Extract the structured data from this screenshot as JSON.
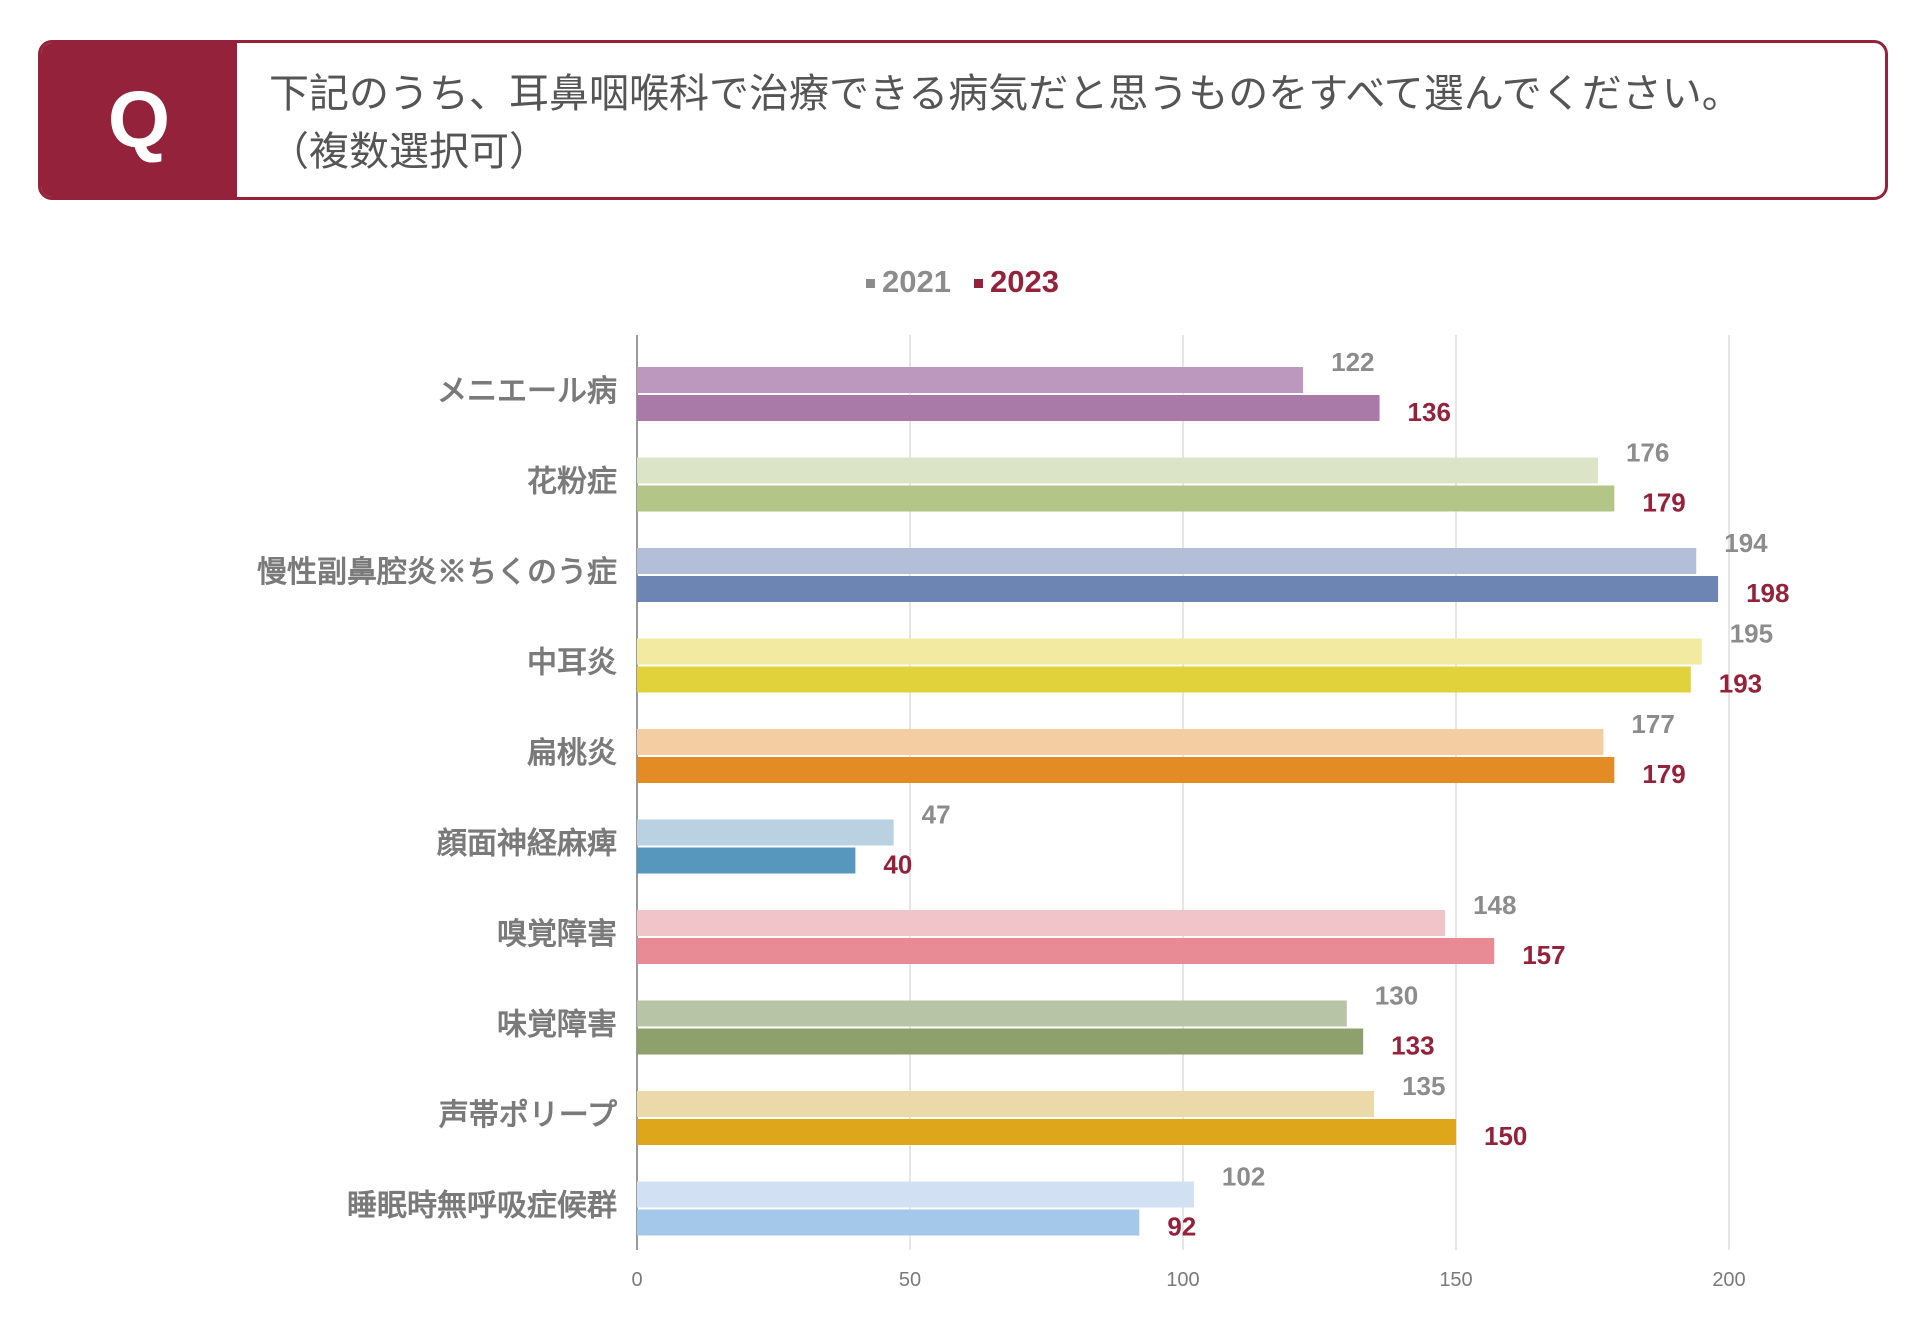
{
  "question": {
    "badge": "Q",
    "line1": "下記のうち、耳鼻咽喉科で治療できる病気だと思うものをすべて選んでください。",
    "line2": "（複数選択可）"
  },
  "colors": {
    "accent": "#93223a",
    "label_gray": "#7a7a7a",
    "legend_2021": "#8c8c8c",
    "legend_2023": "#93223a",
    "grid": "#dddddd",
    "axis": "#9a9a9a"
  },
  "chart_data": {
    "type": "bar",
    "orientation": "horizontal",
    "title": "",
    "xlabel": "",
    "ylabel": "",
    "xlim": [
      0,
      200
    ],
    "x_ticks": [
      0,
      50,
      100,
      150,
      200
    ],
    "x_tick_labels": [
      "0",
      "50",
      "100",
      "150",
      "200"
    ],
    "grid": true,
    "legend_position": "top",
    "categories": [
      "メニエール病",
      "花粉症",
      "慢性副鼻腔炎※ちくのう症",
      "中耳炎",
      "扁桃炎",
      "顔面神経麻痺",
      "嗅覚障害",
      "味覚障害",
      "声帯ポリープ",
      "睡眠時無呼吸症候群"
    ],
    "series": [
      {
        "name": "2021",
        "values": [
          122,
          176,
          194,
          195,
          177,
          47,
          148,
          130,
          135,
          102
        ],
        "colors": [
          "#bc98bf",
          "#dbe4c6",
          "#b3bfd8",
          "#f2eaa0",
          "#f4cda2",
          "#b9d1e1",
          "#f0c4c8",
          "#b7c4a6",
          "#ebd9a9",
          "#d1e1f3"
        ]
      },
      {
        "name": "2023",
        "values": [
          136,
          179,
          198,
          193,
          179,
          40,
          157,
          133,
          150,
          92
        ],
        "colors": [
          "#a97aa8",
          "#b4c588",
          "#6c85b3",
          "#e1d13a",
          "#e38b25",
          "#5797bd",
          "#e98b94",
          "#8ea16d",
          "#dea61a",
          "#a4c8ea"
        ]
      }
    ]
  }
}
